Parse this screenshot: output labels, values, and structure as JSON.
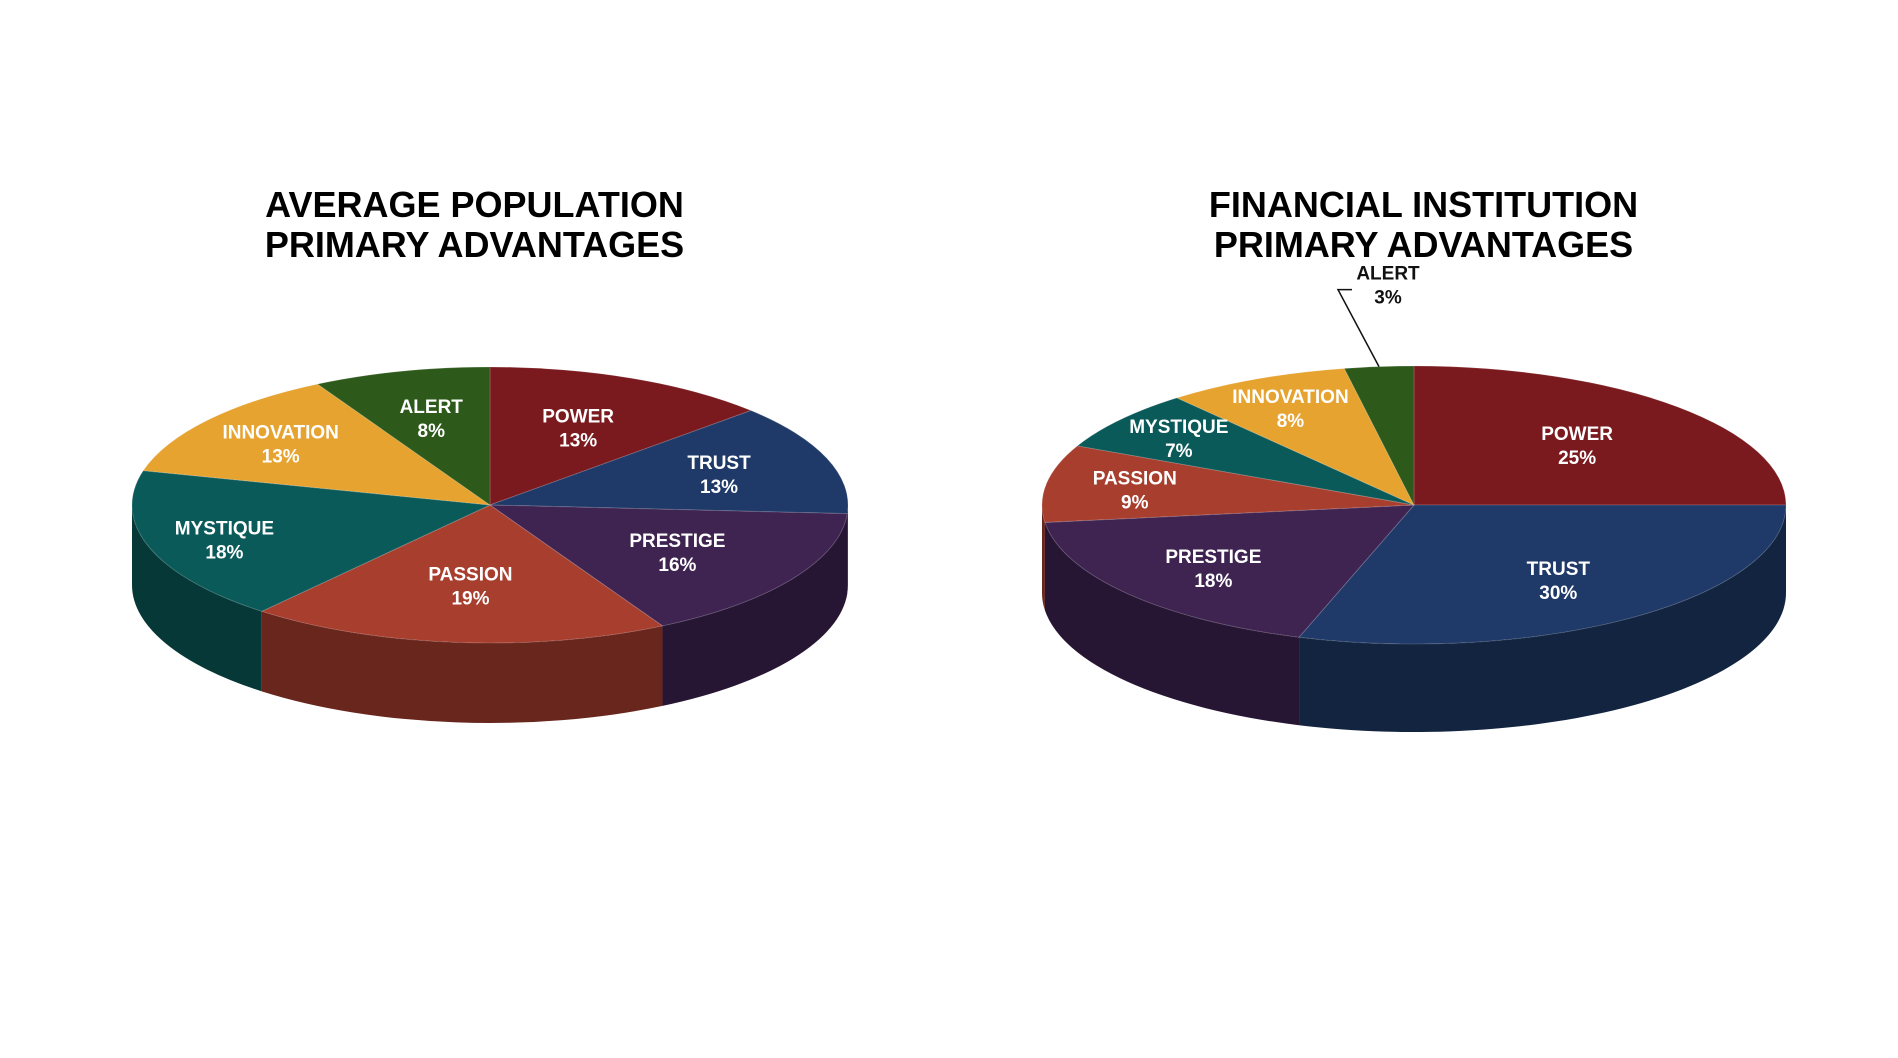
{
  "chart_data": [
    {
      "type": "pie",
      "title": "AVERAGE POPULATION PRIMARY ADVANTAGES",
      "title_lines": [
        "AVERAGE POPULATION",
        "PRIMARY ADVANTAGES"
      ],
      "slices": [
        {
          "label": "POWER",
          "value": 13,
          "value_label": "13%",
          "color": "#7a1a1e"
        },
        {
          "label": "TRUST",
          "value": 13,
          "value_label": "13%",
          "color": "#1f3a68"
        },
        {
          "label": "PRESTIGE",
          "value": 16,
          "value_label": "16%",
          "color": "#3f2452"
        },
        {
          "label": "PASSION",
          "value": 19,
          "value_label": "19%",
          "color": "#a83e2e"
        },
        {
          "label": "MYSTIQUE",
          "value": 18,
          "value_label": "18%",
          "color": "#0b5a5a"
        },
        {
          "label": "INNOVATION",
          "value": 13,
          "value_label": "13%",
          "color": "#e6a330"
        },
        {
          "label": "ALERT",
          "value": 8,
          "value_label": "8%",
          "color": "#2d5a1b"
        }
      ]
    },
    {
      "type": "pie",
      "title": "FINANCIAL INSTITUTION PRIMARY ADVANTAGES",
      "title_lines": [
        "FINANCIAL INSTITUTION",
        "PRIMARY ADVANTAGES"
      ],
      "slices": [
        {
          "label": "POWER",
          "value": 25,
          "value_label": "25%",
          "color": "#7a1a1e"
        },
        {
          "label": "TRUST",
          "value": 30,
          "value_label": "30%",
          "color": "#1f3a68"
        },
        {
          "label": "PRESTIGE",
          "value": 18,
          "value_label": "18%",
          "color": "#3f2452"
        },
        {
          "label": "PASSION",
          "value": 9,
          "value_label": "9%",
          "color": "#a83e2e"
        },
        {
          "label": "MYSTIQUE",
          "value": 7,
          "value_label": "7%",
          "color": "#0b5a5a"
        },
        {
          "label": "INNOVATION",
          "value": 8,
          "value_label": "8%",
          "color": "#e6a330"
        },
        {
          "label": "ALERT",
          "value": 3,
          "value_label": "3%",
          "color": "#2d5a1b"
        }
      ]
    }
  ]
}
